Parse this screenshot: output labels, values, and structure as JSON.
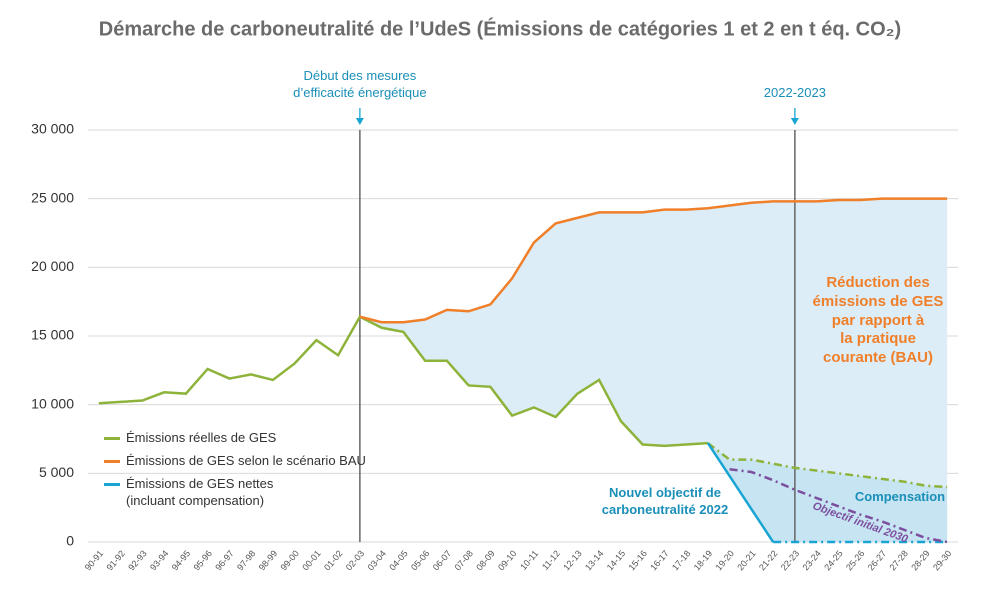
{
  "chart_data": {
    "type": "line",
    "title": "Démarche de carboneutralité de l’UdeS (Émissions de catégories 1 et 2 en t éq. CO₂)",
    "categories": [
      "90-91",
      "91-92",
      "92-93",
      "93-94",
      "94-95",
      "95-96",
      "96-97",
      "97-98",
      "98-99",
      "99-00",
      "00-01",
      "01-02",
      "02-03",
      "03-04",
      "04-05",
      "05-06",
      "06-07",
      "07-08",
      "08-09",
      "09-10",
      "10-11",
      "11-12",
      "12-13",
      "13-14",
      "14-15",
      "15-16",
      "16-17",
      "17-18",
      "18-19",
      "19-20",
      "20-21",
      "21-22",
      "22-23",
      "23-24",
      "24-25",
      "25-26",
      "26-27",
      "27-28",
      "28-29",
      "29-30"
    ],
    "series": [
      {
        "name": "Émissions réelles de GES",
        "color": "#8db33a",
        "legend": true,
        "dashed_from": 28,
        "values": [
          10100,
          10200,
          10300,
          10900,
          10800,
          12600,
          11900,
          12200,
          11800,
          13000,
          14700,
          13600,
          16400,
          15600,
          15300,
          13200,
          13200,
          11400,
          11300,
          9200,
          9800,
          9100,
          10800,
          11800,
          8800,
          7100,
          7000,
          7100,
          7200,
          6000,
          6000,
          5700,
          5400,
          5200,
          5000,
          4800,
          4600,
          4400,
          4100,
          4000
        ]
      },
      {
        "name": "Émissions de GES selon le scénario BAU",
        "color": "#f07f2a",
        "legend": true,
        "dashed_from": 40,
        "values": [
          null,
          null,
          null,
          null,
          null,
          null,
          null,
          null,
          null,
          null,
          null,
          null,
          16400,
          16000,
          16000,
          16200,
          16900,
          16800,
          17300,
          19200,
          21800,
          23200,
          23600,
          24000,
          24000,
          24000,
          24200,
          24200,
          24300,
          24500,
          24700,
          24800,
          24800,
          24800,
          24900,
          24900,
          25000,
          25000,
          25000,
          25000
        ]
      },
      {
        "name": "Émissions de GES nettes\n(incluant compensation)",
        "color": "#19a5d3",
        "legend": true,
        "dashed_from": 31,
        "values": [
          null,
          null,
          null,
          null,
          null,
          null,
          null,
          null,
          null,
          null,
          null,
          null,
          null,
          null,
          null,
          null,
          null,
          null,
          null,
          null,
          null,
          null,
          null,
          null,
          null,
          null,
          null,
          null,
          7200,
          4800,
          2400,
          0,
          0,
          0,
          0,
          0,
          0,
          0,
          0,
          0
        ]
      },
      {
        "name": "Objectif initial 2030",
        "color": "#7b4f9e",
        "legend": false,
        "dashed_from": 29,
        "values": [
          null,
          null,
          null,
          null,
          null,
          null,
          null,
          null,
          null,
          null,
          null,
          null,
          null,
          null,
          null,
          null,
          null,
          null,
          null,
          null,
          null,
          null,
          null,
          null,
          null,
          null,
          null,
          null,
          null,
          5300,
          5100,
          4500,
          3800,
          3200,
          2600,
          2000,
          1500,
          900,
          300,
          0
        ]
      }
    ],
    "ylim": [
      0,
      30000
    ],
    "yticks": [
      0,
      {
        "value": 5000,
        "label": "5 000"
      },
      {
        "value": 10000,
        "label": "10 000"
      },
      {
        "value": 15000,
        "label": "15 000"
      },
      {
        "value": 20000,
        "label": "20 000"
      },
      {
        "value": 25000,
        "label": "25 000"
      },
      {
        "value": 30000,
        "label": "30 000"
      }
    ],
    "grid": true,
    "markers": [
      {
        "category_index": 12,
        "label": "Début des mesures\nd’efficacité énergétique"
      },
      {
        "category_index": 32,
        "label": "2022-2023"
      }
    ],
    "annotations": {
      "reduction": "Réduction des\némissions de GES\npar rapport à\nla pratique\ncourante (BAU)",
      "compensation": "Compensation",
      "new_target": "Nouvel objectif de\ncarboneutralité 2022"
    }
  }
}
